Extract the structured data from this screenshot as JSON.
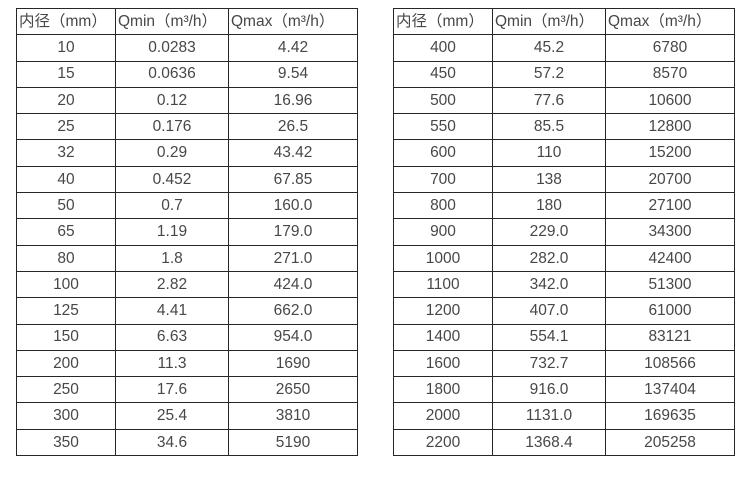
{
  "page": {
    "background": "#ffffff",
    "text_color": "#474747",
    "border_color": "#262626"
  },
  "chart_data": [
    {
      "type": "table",
      "columns": [
        "内径（mm）",
        "Qmin（m³/h）",
        "Qmax（m³/h）"
      ],
      "rows": [
        [
          "10",
          "0.0283",
          "4.42"
        ],
        [
          "15",
          "0.0636",
          "9.54"
        ],
        [
          "20",
          "0.12",
          "16.96"
        ],
        [
          "25",
          "0.176",
          "26.5"
        ],
        [
          "32",
          "0.29",
          "43.42"
        ],
        [
          "40",
          "0.452",
          "67.85"
        ],
        [
          "50",
          "0.7",
          "160.0"
        ],
        [
          "65",
          "1.19",
          "179.0"
        ],
        [
          "80",
          "1.8",
          "271.0"
        ],
        [
          "100",
          "2.82",
          "424.0"
        ],
        [
          "125",
          "4.41",
          "662.0"
        ],
        [
          "150",
          "6.63",
          "954.0"
        ],
        [
          "200",
          "11.3",
          "1690"
        ],
        [
          "250",
          "17.6",
          "2650"
        ],
        [
          "300",
          "25.4",
          "3810"
        ],
        [
          "350",
          "34.6",
          "5190"
        ]
      ]
    },
    {
      "type": "table",
      "columns": [
        "内径（mm）",
        "Qmin（m³/h）",
        "Qmax（m³/h）"
      ],
      "rows": [
        [
          "400",
          "45.2",
          "6780"
        ],
        [
          "450",
          "57.2",
          "8570"
        ],
        [
          "500",
          "77.6",
          "10600"
        ],
        [
          "550",
          "85.5",
          "12800"
        ],
        [
          "600",
          "110",
          "15200"
        ],
        [
          "700",
          "138",
          "20700"
        ],
        [
          "800",
          "180",
          "27100"
        ],
        [
          "900",
          "229.0",
          "34300"
        ],
        [
          "1000",
          "282.0",
          "42400"
        ],
        [
          "1100",
          "342.0",
          "51300"
        ],
        [
          "1200",
          "407.0",
          "61000"
        ],
        [
          "1400",
          "554.1",
          "83121"
        ],
        [
          "1600",
          "732.7",
          "108566"
        ],
        [
          "1800",
          "916.0",
          "137404"
        ],
        [
          "2000",
          "1131.0",
          "169635"
        ],
        [
          "2200",
          "1368.4",
          "205258"
        ]
      ]
    }
  ]
}
